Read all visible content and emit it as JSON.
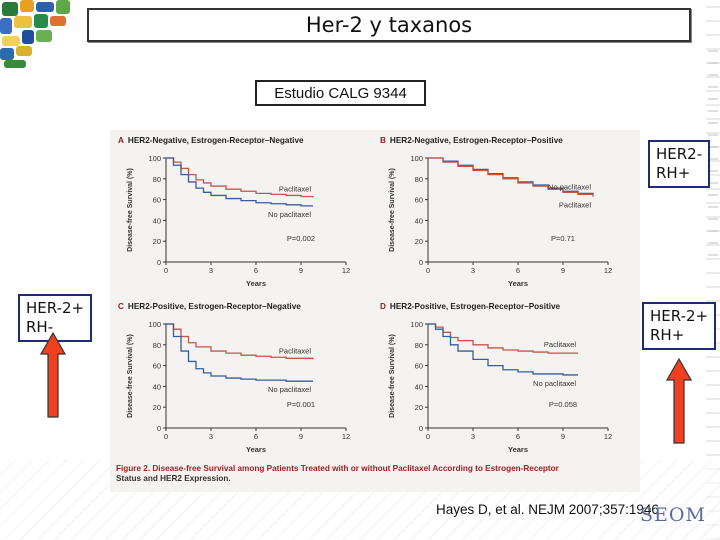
{
  "slide": {
    "title": "Her-2 y taxanos",
    "study_label": "Estudio CALG 9344",
    "citation": "Hayes D, et al. NEJM 2007;357:1946",
    "logo_text": "SEOM",
    "arrow_color": "#f04020",
    "box_border_color": "#1e2b78"
  },
  "side_labels": {
    "top_right": [
      "HER2-",
      "RH+"
    ],
    "mid_left": [
      "HER-2+",
      "RH-"
    ],
    "mid_right": [
      "HER-2+",
      "RH+"
    ]
  },
  "figure": {
    "caption_lead": "Figure 2. Disease-free Survival among Patients Treated with or without Paclitaxel According to Estrogen-Receptor",
    "caption_rest": "Status and HER2 Expression.",
    "colors": {
      "paclitaxel": "#c0584a",
      "no_paclitaxel": "#3a5c9a"
    }
  },
  "chart_data": [
    {
      "type": "line",
      "letter": "A",
      "title": "HER2-Negative, Estrogen-Receptor–Negative",
      "xlabel": "Years",
      "ylabel": "Disease-free Survival (%)",
      "xlim": [
        0,
        12
      ],
      "ylim": [
        0,
        100
      ],
      "xticks": [
        "0",
        "3",
        "6",
        "9",
        "12"
      ],
      "yticks": [
        "0",
        "20",
        "40",
        "60",
        "80",
        "100"
      ],
      "p_value": "P=0.002",
      "series": [
        {
          "name": "Paclitaxel",
          "x": [
            0,
            0.5,
            1,
            1.5,
            2,
            2.5,
            3,
            4,
            5,
            6,
            7,
            8,
            9,
            9.8
          ],
          "y": [
            100,
            96,
            90,
            84,
            79,
            76,
            73,
            70,
            68,
            66,
            65,
            64,
            63,
            62
          ]
        },
        {
          "name": "No paclitaxel",
          "x": [
            0,
            0.5,
            1,
            1.5,
            2,
            2.5,
            3,
            4,
            5,
            6,
            7,
            8,
            9,
            9.8
          ],
          "y": [
            100,
            93,
            84,
            77,
            71,
            67,
            64,
            61,
            59,
            57,
            56,
            55,
            54,
            54
          ]
        }
      ]
    },
    {
      "type": "line",
      "letter": "B",
      "title": "HER2-Negative, Estrogen-Receptor–Positive",
      "xlabel": "Years",
      "ylabel": "Disease-free Survival (%)",
      "xlim": [
        0,
        12
      ],
      "ylim": [
        0,
        100
      ],
      "xticks": [
        "0",
        "3",
        "6",
        "9",
        "12"
      ],
      "yticks": [
        "0",
        "20",
        "40",
        "60",
        "80",
        "100"
      ],
      "p_value": "P=0.71",
      "series": [
        {
          "name": "No paclitaxel",
          "x": [
            0,
            1,
            2,
            3,
            4,
            5,
            6,
            7,
            8,
            9,
            10,
            11
          ],
          "y": [
            100,
            97,
            93,
            89,
            85,
            81,
            77,
            74,
            71,
            68,
            66,
            64
          ]
        },
        {
          "name": "Paclitaxel",
          "x": [
            0,
            1,
            2,
            3,
            4,
            5,
            6,
            7,
            8,
            9,
            10,
            11
          ],
          "y": [
            100,
            96,
            92,
            88,
            84,
            80,
            76,
            73,
            70,
            67,
            65,
            63
          ]
        }
      ]
    },
    {
      "type": "line",
      "letter": "C",
      "title": "HER2-Positive, Estrogen-Receptor–Negative",
      "xlabel": "Years",
      "ylabel": "Disease-free Survival (%)",
      "xlim": [
        0,
        12
      ],
      "ylim": [
        0,
        100
      ],
      "xticks": [
        "0",
        "3",
        "6",
        "9",
        "12"
      ],
      "yticks": [
        "0",
        "20",
        "40",
        "60",
        "80",
        "100"
      ],
      "p_value": "P=0.001",
      "series": [
        {
          "name": "Paclitaxel",
          "x": [
            0,
            0.5,
            1,
            1.5,
            2,
            3,
            4,
            5,
            6,
            7,
            8,
            9,
            9.8
          ],
          "y": [
            100,
            95,
            88,
            82,
            78,
            74,
            72,
            70,
            69,
            68,
            67,
            67,
            66
          ]
        },
        {
          "name": "No paclitaxel",
          "x": [
            0,
            0.5,
            1,
            1.5,
            2,
            2.5,
            3,
            4,
            5,
            6,
            7,
            8,
            9,
            9.8
          ],
          "y": [
            100,
            88,
            74,
            64,
            57,
            53,
            50,
            48,
            47,
            46,
            46,
            45,
            45,
            45
          ]
        }
      ]
    },
    {
      "type": "line",
      "letter": "D",
      "title": "HER2-Positive, Estrogen-Receptor–Positive",
      "xlabel": "Years",
      "ylabel": "Disease-free Survival (%)",
      "xlim": [
        0,
        12
      ],
      "ylim": [
        0,
        100
      ],
      "xticks": [
        "0",
        "3",
        "6",
        "9",
        "12"
      ],
      "yticks": [
        "0",
        "20",
        "40",
        "60",
        "80",
        "100"
      ],
      "p_value": "P=0.058",
      "series": [
        {
          "name": "Paclitaxel",
          "x": [
            0,
            0.5,
            1,
            1.5,
            2,
            3,
            4,
            5,
            6,
            7,
            8,
            9,
            10
          ],
          "y": [
            100,
            97,
            92,
            87,
            84,
            80,
            77,
            75,
            74,
            73,
            72,
            72,
            72
          ]
        },
        {
          "name": "No paclitaxel",
          "x": [
            0,
            0.5,
            1,
            1.5,
            2,
            3,
            4,
            5,
            6,
            7,
            8,
            9,
            10
          ],
          "y": [
            100,
            95,
            88,
            80,
            74,
            66,
            60,
            56,
            54,
            52,
            52,
            51,
            51
          ]
        }
      ]
    }
  ]
}
